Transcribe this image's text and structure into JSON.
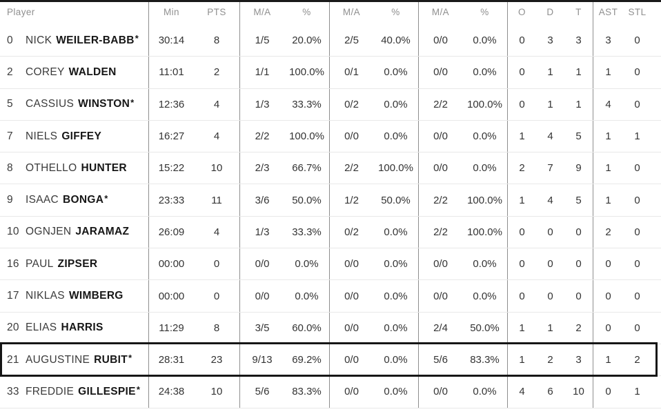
{
  "table": {
    "header": {
      "player": "Player",
      "min": "Min",
      "pts": "PTS",
      "fg_ma": "M/A",
      "fg_pct": "%",
      "p3_ma": "M/A",
      "p3_pct": "%",
      "ft_ma": "M/A",
      "ft_pct": "%",
      "o": "O",
      "d": "D",
      "t": "T",
      "ast": "AST",
      "stl": "STL"
    },
    "players": [
      {
        "num": "0",
        "first": "NICK",
        "last": "WEILER-BABB",
        "star": "*",
        "min": "30:14",
        "pts": "8",
        "fg_ma": "1/5",
        "fg_pct": "20.0%",
        "p3_ma": "2/5",
        "p3_pct": "40.0%",
        "ft_ma": "0/0",
        "ft_pct": "0.0%",
        "o": "0",
        "d": "3",
        "t": "3",
        "ast": "3",
        "stl": "0",
        "highlighted": false
      },
      {
        "num": "2",
        "first": "COREY",
        "last": "WALDEN",
        "star": "",
        "min": "11:01",
        "pts": "2",
        "fg_ma": "1/1",
        "fg_pct": "100.0%",
        "p3_ma": "0/1",
        "p3_pct": "0.0%",
        "ft_ma": "0/0",
        "ft_pct": "0.0%",
        "o": "0",
        "d": "1",
        "t": "1",
        "ast": "1",
        "stl": "0",
        "highlighted": false
      },
      {
        "num": "5",
        "first": "CASSIUS",
        "last": "WINSTON",
        "star": "*",
        "min": "12:36",
        "pts": "4",
        "fg_ma": "1/3",
        "fg_pct": "33.3%",
        "p3_ma": "0/2",
        "p3_pct": "0.0%",
        "ft_ma": "2/2",
        "ft_pct": "100.0%",
        "o": "0",
        "d": "1",
        "t": "1",
        "ast": "4",
        "stl": "0",
        "highlighted": false
      },
      {
        "num": "7",
        "first": "NIELS",
        "last": "GIFFEY",
        "star": "",
        "min": "16:27",
        "pts": "4",
        "fg_ma": "2/2",
        "fg_pct": "100.0%",
        "p3_ma": "0/0",
        "p3_pct": "0.0%",
        "ft_ma": "0/0",
        "ft_pct": "0.0%",
        "o": "1",
        "d": "4",
        "t": "5",
        "ast": "1",
        "stl": "1",
        "highlighted": false
      },
      {
        "num": "8",
        "first": "OTHELLO",
        "last": "HUNTER",
        "star": "",
        "min": "15:22",
        "pts": "10",
        "fg_ma": "2/3",
        "fg_pct": "66.7%",
        "p3_ma": "2/2",
        "p3_pct": "100.0%",
        "ft_ma": "0/0",
        "ft_pct": "0.0%",
        "o": "2",
        "d": "7",
        "t": "9",
        "ast": "1",
        "stl": "0",
        "highlighted": false
      },
      {
        "num": "9",
        "first": "ISAAC",
        "last": "BONGA",
        "star": "*",
        "min": "23:33",
        "pts": "11",
        "fg_ma": "3/6",
        "fg_pct": "50.0%",
        "p3_ma": "1/2",
        "p3_pct": "50.0%",
        "ft_ma": "2/2",
        "ft_pct": "100.0%",
        "o": "1",
        "d": "4",
        "t": "5",
        "ast": "1",
        "stl": "0",
        "highlighted": false
      },
      {
        "num": "10",
        "first": "OGNJEN",
        "last": "JARAMAZ",
        "star": "",
        "min": "26:09",
        "pts": "4",
        "fg_ma": "1/3",
        "fg_pct": "33.3%",
        "p3_ma": "0/2",
        "p3_pct": "0.0%",
        "ft_ma": "2/2",
        "ft_pct": "100.0%",
        "o": "0",
        "d": "0",
        "t": "0",
        "ast": "2",
        "stl": "0",
        "highlighted": false
      },
      {
        "num": "16",
        "first": "PAUL",
        "last": "ZIPSER",
        "star": "",
        "min": "00:00",
        "pts": "0",
        "fg_ma": "0/0",
        "fg_pct": "0.0%",
        "p3_ma": "0/0",
        "p3_pct": "0.0%",
        "ft_ma": "0/0",
        "ft_pct": "0.0%",
        "o": "0",
        "d": "0",
        "t": "0",
        "ast": "0",
        "stl": "0",
        "highlighted": false
      },
      {
        "num": "17",
        "first": "NIKLAS",
        "last": "WIMBERG",
        "star": "",
        "min": "00:00",
        "pts": "0",
        "fg_ma": "0/0",
        "fg_pct": "0.0%",
        "p3_ma": "0/0",
        "p3_pct": "0.0%",
        "ft_ma": "0/0",
        "ft_pct": "0.0%",
        "o": "0",
        "d": "0",
        "t": "0",
        "ast": "0",
        "stl": "0",
        "highlighted": false
      },
      {
        "num": "20",
        "first": "ELIAS",
        "last": "HARRIS",
        "star": "",
        "min": "11:29",
        "pts": "8",
        "fg_ma": "3/5",
        "fg_pct": "60.0%",
        "p3_ma": "0/0",
        "p3_pct": "0.0%",
        "ft_ma": "2/4",
        "ft_pct": "50.0%",
        "o": "1",
        "d": "1",
        "t": "2",
        "ast": "0",
        "stl": "0",
        "highlighted": false
      },
      {
        "num": "21",
        "first": "AUGUSTINE",
        "last": "RUBIT",
        "star": "*",
        "min": "28:31",
        "pts": "23",
        "fg_ma": "9/13",
        "fg_pct": "69.2%",
        "p3_ma": "0/0",
        "p3_pct": "0.0%",
        "ft_ma": "5/6",
        "ft_pct": "83.3%",
        "o": "1",
        "d": "2",
        "t": "3",
        "ast": "1",
        "stl": "2",
        "highlighted": true
      },
      {
        "num": "33",
        "first": "FREDDIE",
        "last": "GILLESPIE",
        "star": "*",
        "min": "24:38",
        "pts": "10",
        "fg_ma": "5/6",
        "fg_pct": "83.3%",
        "p3_ma": "0/0",
        "p3_pct": "0.0%",
        "ft_ma": "0/0",
        "ft_pct": "0.0%",
        "o": "4",
        "d": "6",
        "t": "10",
        "ast": "0",
        "stl": "1",
        "highlighted": false
      }
    ]
  },
  "colors": {
    "top_border": "#1a1a1a",
    "header_text": "#8f8f8f",
    "vertical_divider": "#8d8d8d",
    "row_divider": "#e8e8e8",
    "body_text": "#333333",
    "name_bold": "#161616",
    "highlight_border": "#161616"
  }
}
